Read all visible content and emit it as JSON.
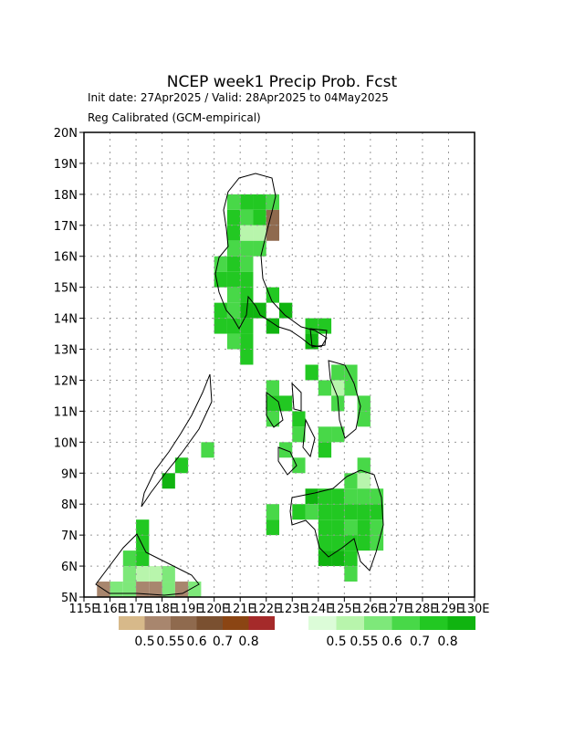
{
  "map": {
    "title": "NCEP week1 Precip Prob. Fcst",
    "subtitle": "Init date: 27Apr2025 / Valid: 28Apr2025 to 04May2025",
    "method": "Reg Calibrated (GCM-empirical)",
    "xlim": [
      115,
      130
    ],
    "ylim": [
      5,
      20
    ],
    "lon_ticks": [
      {
        "value": 115,
        "label": "115E"
      },
      {
        "value": 116,
        "label": "116E"
      },
      {
        "value": 117,
        "label": "117E"
      },
      {
        "value": 118,
        "label": "118E"
      },
      {
        "value": 119,
        "label": "119E"
      },
      {
        "value": 120,
        "label": "120E"
      },
      {
        "value": 121,
        "label": "121E"
      },
      {
        "value": 122,
        "label": "122E"
      },
      {
        "value": 123,
        "label": "123E"
      },
      {
        "value": 124,
        "label": "124E"
      },
      {
        "value": 125,
        "label": "125E"
      },
      {
        "value": 126,
        "label": "126E"
      },
      {
        "value": 127,
        "label": "127E"
      },
      {
        "value": 128,
        "label": "128E"
      },
      {
        "value": 129,
        "label": "129E"
      },
      {
        "value": 130,
        "label": "130E"
      }
    ],
    "lat_ticks": [
      {
        "value": 5,
        "label": "5N"
      },
      {
        "value": 6,
        "label": "6N"
      },
      {
        "value": 7,
        "label": "7N"
      },
      {
        "value": 8,
        "label": "8N"
      },
      {
        "value": 9,
        "label": "9N"
      },
      {
        "value": 10,
        "label": "10N"
      },
      {
        "value": 11,
        "label": "11N"
      },
      {
        "value": 12,
        "label": "12N"
      },
      {
        "value": 13,
        "label": "13N"
      },
      {
        "value": 14,
        "label": "14N"
      },
      {
        "value": 15,
        "label": "15N"
      },
      {
        "value": 16,
        "label": "16N"
      },
      {
        "value": 17,
        "label": "17N"
      },
      {
        "value": 18,
        "label": "18N"
      },
      {
        "value": 19,
        "label": "19N"
      },
      {
        "value": 20,
        "label": "20N"
      }
    ],
    "thresholds": [
      0.5,
      0.55,
      0.6,
      0.7,
      0.8
    ],
    "below_colors": [
      "#d7b98a",
      "#a8866e",
      "#8f6a4e",
      "#7a5030",
      "#8b4513",
      "#a52a2a"
    ],
    "above_colors": [
      "#dcfcd8",
      "#b8f5ac",
      "#7ee87a",
      "#48d848",
      "#22c822",
      "#10b410"
    ],
    "grid": true,
    "above_cells": [
      [
        120.5,
        17.5,
        0.6
      ],
      [
        121,
        17.5,
        0.7
      ],
      [
        121.5,
        17.5,
        0.7
      ],
      [
        122,
        17.5,
        0.6
      ],
      [
        120.5,
        17,
        0.7
      ],
      [
        121,
        17,
        0.6
      ],
      [
        121.5,
        17,
        0.7
      ],
      [
        120.5,
        16.5,
        0.7
      ],
      [
        121,
        16.5,
        0.5
      ],
      [
        121.5,
        16.5,
        0.5
      ],
      [
        120.5,
        16,
        0.6
      ],
      [
        121,
        16,
        0.6
      ],
      [
        121.5,
        16,
        0.6
      ],
      [
        120,
        15.5,
        0.6
      ],
      [
        120.5,
        15.5,
        0.7
      ],
      [
        121,
        15.5,
        0.6
      ],
      [
        120,
        15,
        0.7
      ],
      [
        120.5,
        15,
        0.7
      ],
      [
        121,
        15,
        0.7
      ],
      [
        120.5,
        14.5,
        0.6
      ],
      [
        121,
        14.5,
        0.7
      ],
      [
        122,
        14.5,
        0.7
      ],
      [
        120,
        14,
        0.7
      ],
      [
        120.5,
        14,
        0.6
      ],
      [
        121,
        14,
        0.8
      ],
      [
        121.5,
        14,
        0.8
      ],
      [
        122.5,
        14,
        0.8
      ],
      [
        120,
        13.5,
        0.7
      ],
      [
        120.5,
        13.5,
        0.7
      ],
      [
        121,
        13.5,
        0.7
      ],
      [
        122,
        13.5,
        0.8
      ],
      [
        123.5,
        13.5,
        0.7
      ],
      [
        124,
        13.5,
        0.7
      ],
      [
        120.5,
        13,
        0.6
      ],
      [
        121,
        13,
        0.7
      ],
      [
        123.5,
        13,
        0.8
      ],
      [
        121,
        12.5,
        0.7
      ],
      [
        123.5,
        12,
        0.7
      ],
      [
        124.5,
        12,
        0.6
      ],
      [
        125,
        12,
        0.6
      ],
      [
        122,
        11.5,
        0.6
      ],
      [
        124,
        11.5,
        0.6
      ],
      [
        124.5,
        11.5,
        0.5
      ],
      [
        125,
        11.5,
        0.6
      ],
      [
        122,
        11,
        0.7
      ],
      [
        122.5,
        11,
        0.7
      ],
      [
        124.5,
        11,
        0.6
      ],
      [
        125.5,
        11,
        0.6
      ],
      [
        122,
        10.5,
        0.6
      ],
      [
        123,
        10.5,
        0.7
      ],
      [
        125.5,
        10.5,
        0.6
      ],
      [
        123,
        10,
        0.6
      ],
      [
        124,
        10,
        0.6
      ],
      [
        124.5,
        10,
        0.6
      ],
      [
        119.5,
        9.5,
        0.6
      ],
      [
        122.5,
        9.5,
        0.6
      ],
      [
        124,
        9.5,
        0.7
      ],
      [
        118.5,
        9,
        0.7
      ],
      [
        123,
        9,
        0.6
      ],
      [
        125.5,
        9,
        0.6
      ],
      [
        118,
        8.5,
        0.8
      ],
      [
        125,
        8.5,
        0.6
      ],
      [
        125.5,
        8.5,
        0.5
      ],
      [
        123.5,
        8,
        0.8
      ],
      [
        124,
        8,
        0.7
      ],
      [
        124.5,
        8,
        0.7
      ],
      [
        125,
        8,
        0.6
      ],
      [
        125.5,
        8,
        0.6
      ],
      [
        126,
        8,
        0.6
      ],
      [
        122,
        7.5,
        0.6
      ],
      [
        123,
        7.5,
        0.7
      ],
      [
        123.5,
        7.5,
        0.6
      ],
      [
        124,
        7.5,
        0.7
      ],
      [
        124.5,
        7.5,
        0.7
      ],
      [
        125,
        7.5,
        0.7
      ],
      [
        125.5,
        7.5,
        0.7
      ],
      [
        126,
        7.5,
        0.7
      ],
      [
        117,
        7,
        0.7
      ],
      [
        122,
        7,
        0.7
      ],
      [
        124,
        7,
        0.7
      ],
      [
        124.5,
        7,
        0.7
      ],
      [
        125,
        7,
        0.6
      ],
      [
        125.5,
        7,
        0.7
      ],
      [
        126,
        7,
        0.6
      ],
      [
        117,
        6.5,
        0.7
      ],
      [
        124,
        6.5,
        0.7
      ],
      [
        124.5,
        6.5,
        0.7
      ],
      [
        125,
        6.5,
        0.7
      ],
      [
        125.5,
        6.5,
        0.7
      ],
      [
        126,
        6.5,
        0.6
      ],
      [
        116.5,
        6,
        0.6
      ],
      [
        117,
        6,
        0.7
      ],
      [
        124,
        6,
        0.8
      ],
      [
        124.5,
        6,
        0.8
      ],
      [
        125,
        6,
        0.7
      ],
      [
        116.5,
        5.5,
        0.55
      ],
      [
        117,
        5.5,
        0.5
      ],
      [
        117.5,
        5.5,
        0.5
      ],
      [
        118,
        5.5,
        0.55
      ],
      [
        125,
        5.5,
        0.6
      ],
      [
        116,
        5,
        0.55
      ],
      [
        116.5,
        5,
        0.55
      ],
      [
        118,
        5,
        0.55
      ],
      [
        119,
        5,
        0.55
      ]
    ],
    "below_cells": [
      [
        122,
        17,
        0.55
      ],
      [
        122,
        16.5,
        0.55
      ],
      [
        115.5,
        5,
        0.5
      ],
      [
        117,
        5,
        0.5
      ],
      [
        117.5,
        5,
        0.5
      ],
      [
        118.5,
        5,
        0.5
      ]
    ]
  }
}
